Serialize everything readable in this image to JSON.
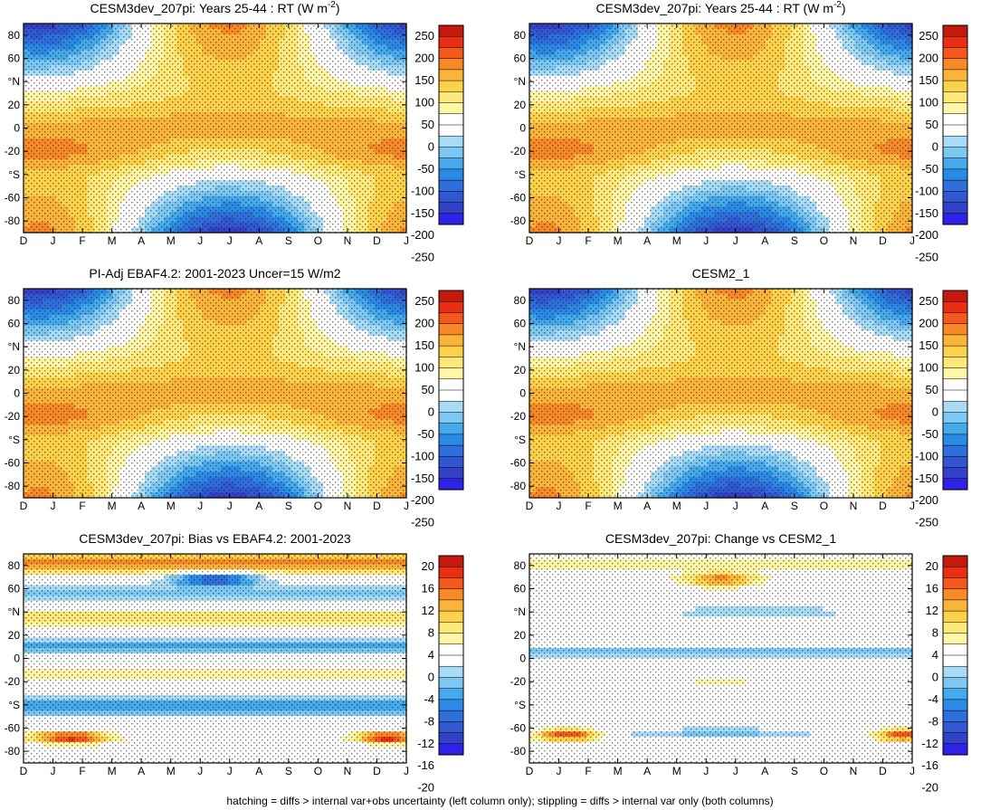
{
  "chart_data": [
    {
      "type": "heatmap",
      "panel": "top-left",
      "title": "CESM3dev_207pi: Years 25-44 : RT (W m",
      "title_sup": "-2",
      "title_close": ")",
      "x_ticks": [
        "D",
        "J",
        "F",
        "M",
        "A",
        "M",
        "J",
        "J",
        "A",
        "S",
        "O",
        "N",
        "D",
        "J"
      ],
      "y_ticks": [
        "80",
        "60",
        "°N",
        "20",
        "0",
        "-20",
        "°S",
        "-60",
        "-80"
      ],
      "colorbar_labels": [
        "250",
        "200",
        "150",
        "100",
        "50",
        "0",
        "-50",
        "-100",
        "-150",
        "-200",
        "-250"
      ],
      "stippling": true,
      "hatching": true
    },
    {
      "type": "heatmap",
      "panel": "top-right",
      "title": "CESM3dev_207pi: Years 25-44 : RT (W m",
      "title_sup": "-2",
      "title_close": ")",
      "x_ticks": [
        "D",
        "J",
        "F",
        "M",
        "A",
        "M",
        "J",
        "J",
        "A",
        "S",
        "O",
        "N",
        "D",
        "J"
      ],
      "y_ticks": [
        "80",
        "60",
        "°N",
        "20",
        "0",
        "-20",
        "°S",
        "-60",
        "-80"
      ],
      "colorbar_labels": [
        "250",
        "200",
        "150",
        "100",
        "50",
        "0",
        "-50",
        "-100",
        "-150",
        "-200",
        "-250"
      ],
      "stippling": true,
      "hatching": false
    },
    {
      "type": "heatmap",
      "panel": "middle-left",
      "title": "PI-Adj EBAF4.2: 2001-2023 Uncer=15 W/m2",
      "x_ticks": [
        "D",
        "J",
        "F",
        "M",
        "A",
        "M",
        "J",
        "J",
        "A",
        "S",
        "O",
        "N",
        "D",
        "J"
      ],
      "y_ticks": [
        "80",
        "60",
        "°N",
        "20",
        "0",
        "-20",
        "°S",
        "-60",
        "-80"
      ],
      "colorbar_labels": [
        "250",
        "200",
        "150",
        "100",
        "50",
        "0",
        "-50",
        "-100",
        "-150",
        "-200",
        "-250"
      ],
      "stippling": true,
      "hatching": true
    },
    {
      "type": "heatmap",
      "panel": "middle-right",
      "title": "CESM2_1",
      "x_ticks": [
        "D",
        "J",
        "F",
        "M",
        "A",
        "M",
        "J",
        "J",
        "A",
        "S",
        "O",
        "N",
        "D",
        "J"
      ],
      "y_ticks": [
        "80",
        "60",
        "°N",
        "20",
        "0",
        "-20",
        "°S",
        "-60",
        "-80"
      ],
      "colorbar_labels": [
        "250",
        "200",
        "150",
        "100",
        "50",
        "0",
        "-50",
        "-100",
        "-150",
        "-200",
        "-250"
      ],
      "stippling": true,
      "hatching": false
    },
    {
      "type": "heatmap",
      "panel": "bottom-left",
      "title": "CESM3dev_207pi: Bias vs EBAF4.2: 2001-2023",
      "x_ticks": [
        "D",
        "J",
        "F",
        "M",
        "A",
        "M",
        "J",
        "J",
        "A",
        "S",
        "O",
        "N",
        "D",
        "J"
      ],
      "y_ticks": [
        "80",
        "60",
        "°N",
        "20",
        "0",
        "-20",
        "°S",
        "-60",
        "-80"
      ],
      "colorbar_labels": [
        "20",
        "16",
        "12",
        "8",
        "4",
        "0",
        "-4",
        "-8",
        "-12",
        "-16",
        "-20"
      ],
      "stippling": true,
      "hatching": true
    },
    {
      "type": "heatmap",
      "panel": "bottom-right",
      "title": "CESM3dev_207pi: Change vs CESM2_1",
      "x_ticks": [
        "D",
        "J",
        "F",
        "M",
        "A",
        "M",
        "J",
        "J",
        "A",
        "S",
        "O",
        "N",
        "D",
        "J"
      ],
      "y_ticks": [
        "80",
        "60",
        "°N",
        "20",
        "0",
        "-20",
        "°S",
        "-60",
        "-80"
      ],
      "colorbar_labels": [
        "20",
        "16",
        "12",
        "8",
        "4",
        "0",
        "-4",
        "-8",
        "-12",
        "-16",
        "-20"
      ],
      "stippling": true,
      "hatching": false
    }
  ],
  "colors": [
    "#c41a0e",
    "#ea2e14",
    "#f3581d",
    "#f78a27",
    "#fbb43a",
    "#fdd24b",
    "#fee87a",
    "#fff6a8",
    "#ffffff",
    "#ffffff",
    "#a8dcf6",
    "#7cc8f2",
    "#45a9ec",
    "#2b8ae6",
    "#2e6fdc",
    "#3257d2",
    "#3340c8",
    "#2f22e8"
  ],
  "footnote": "hatching = diffs > internal var+obs uncertainty (left column only); stippling = diffs > internal var only (both columns)"
}
